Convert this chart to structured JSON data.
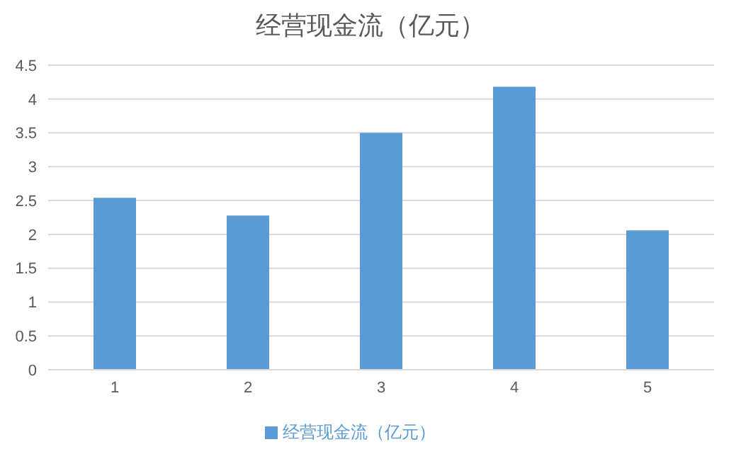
{
  "chart_data": {
    "type": "bar",
    "title": "经营现金流（亿元）",
    "categories": [
      "1",
      "2",
      "3",
      "4",
      "5"
    ],
    "series": [
      {
        "name": "经营现金流（亿元）",
        "color": "#5b9bd5",
        "values": [
          2.54,
          2.28,
          3.5,
          4.18,
          2.06
        ]
      }
    ],
    "ylim": [
      0,
      4.5
    ],
    "yticks": [
      0,
      0.5,
      1,
      1.5,
      2,
      2.5,
      3,
      3.5,
      4,
      4.5
    ],
    "grid": "y",
    "legend": "bottom"
  }
}
